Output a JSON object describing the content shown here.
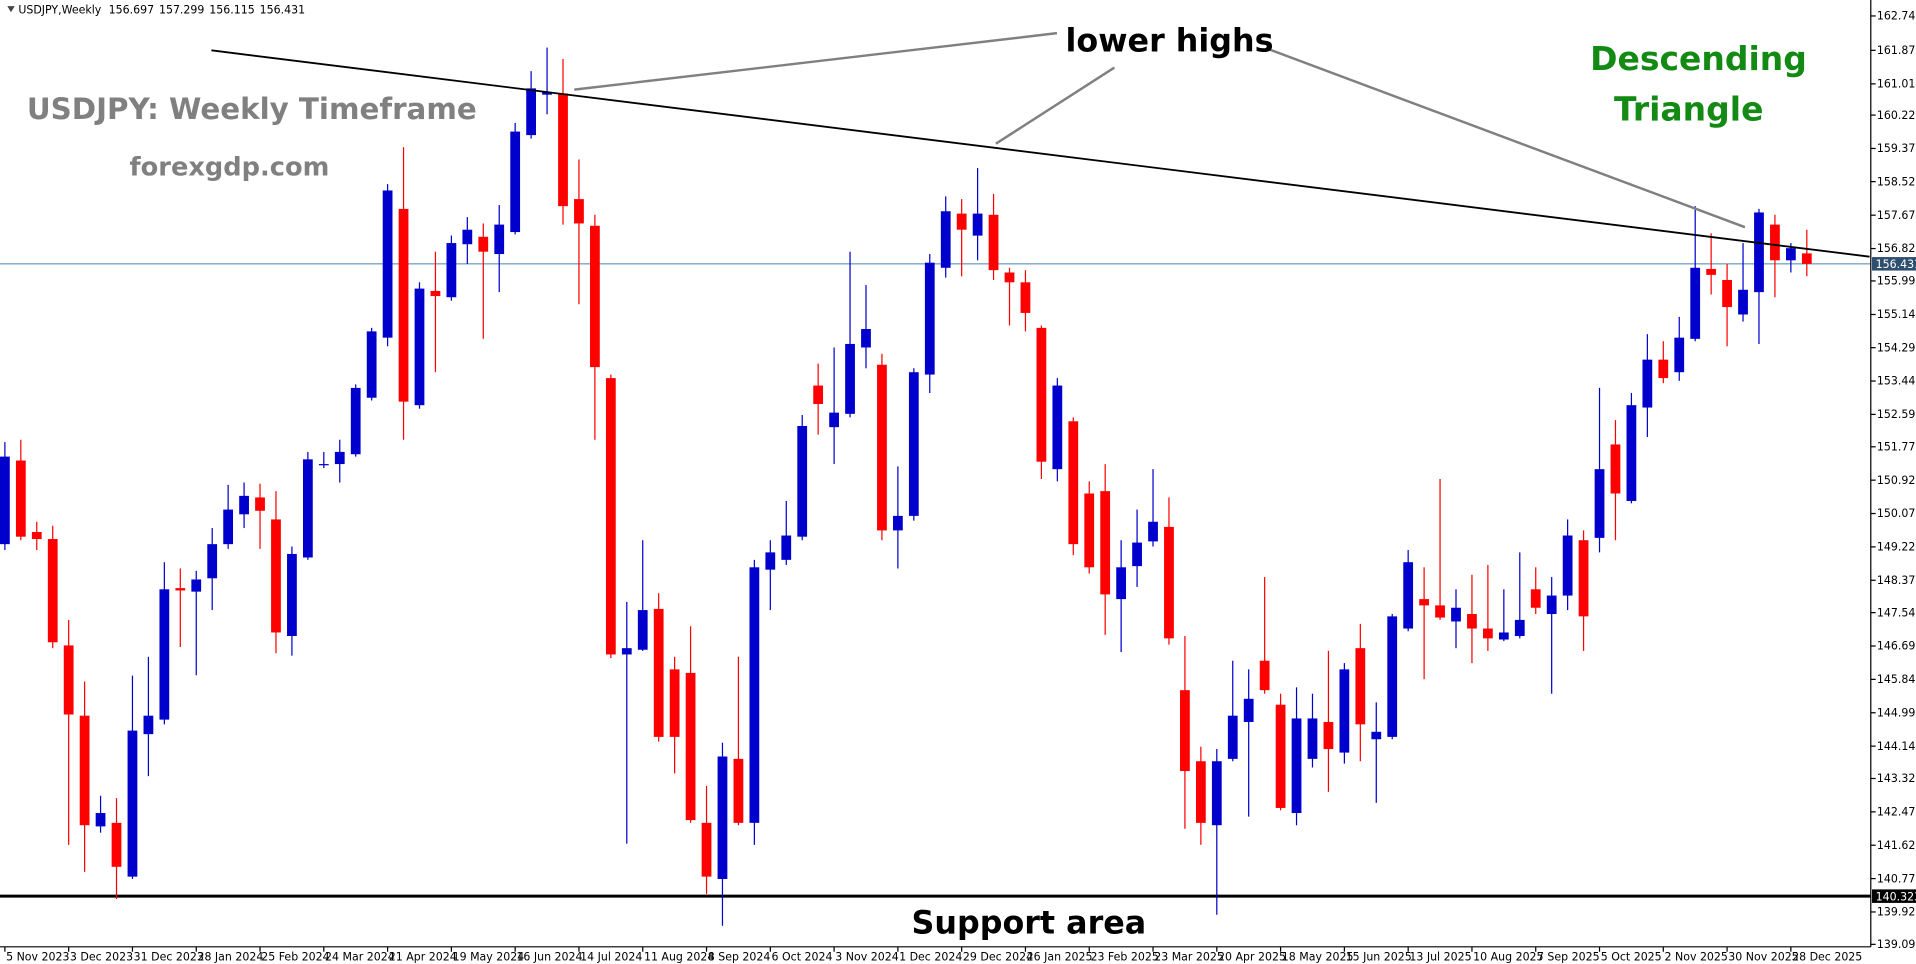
{
  "chart_data": {
    "type": "candlestick",
    "symbol": "USDJPY,Weekly",
    "title": "USDJPY: Weekly Timeframe",
    "source": "forexgdp.com",
    "annotation": "lower highs",
    "pattern_label": [
      "Descending",
      "Triangle"
    ],
    "support_label": "Support area",
    "up_color": "#0000cd",
    "down_color": "#ff0000",
    "current_price": 156.431,
    "current_price_color": "#4682b4",
    "support_level": 140.323,
    "ylim": [
      139.095,
      162.745
    ],
    "yticks": [
      162.745,
      {
        "value": 161.87,
        "label": "161.870"
      },
      161.015,
      {
        "value": 160.22,
        "label": "160.220"
      },
      {
        "value": 159.37,
        "label": "159.370"
      },
      158.525,
      {
        "value": 157.67,
        "label": "157.670"
      },
      {
        "value": 156.82,
        "label": "156.820"
      },
      155.995,
      {
        "value": 155.14,
        "label": "155.140"
      },
      154.295,
      153.445,
      152.595,
      {
        "value": 151.77,
        "label": "151.770"
      },
      {
        "value": 150.92,
        "label": "150.920"
      },
      {
        "value": 150.07,
        "label": "150.070"
      },
      {
        "value": 149.22,
        "label": "149.220"
      },
      {
        "value": 148.37,
        "label": "148.370"
      },
      147.545,
      146.695,
      145.845,
      144.995,
      144.145,
      {
        "value": 143.32,
        "label": "143.320"
      },
      {
        "value": 142.47,
        "label": "142.470"
      },
      {
        "value": 141.62,
        "label": "141.620"
      },
      {
        "value": 140.77,
        "label": "140.770"
      },
      {
        "value": 139.92,
        "label": "139.920"
      },
      139.095
    ],
    "categories": [
      "5 Nov 2023",
      null,
      null,
      null,
      "3 Dec 2023",
      null,
      null,
      null,
      "31 Dec 2023",
      null,
      null,
      null,
      "28 Jan 2024",
      null,
      null,
      null,
      "25 Feb 2024",
      null,
      null,
      null,
      "24 Mar 2024",
      null,
      null,
      null,
      "21 Apr 2024",
      null,
      null,
      null,
      "19 May 2024",
      null,
      null,
      null,
      "16 Jun 2024",
      null,
      null,
      null,
      "14 Jul 2024",
      null,
      null,
      null,
      "11 Aug 2024",
      null,
      null,
      null,
      "8 Sep 2024",
      null,
      null,
      null,
      "6 Oct 2024",
      null,
      null,
      null,
      "3 Nov 2024",
      null,
      null,
      null,
      "1 Dec 2024",
      null,
      null,
      null,
      "29 Dec 2024",
      null,
      null,
      null,
      "26 Jan 2025",
      null,
      null,
      null,
      "23 Feb 2025",
      null,
      null,
      null,
      "23 Mar 2025",
      null,
      null,
      null,
      "20 Apr 2025",
      null,
      null,
      null,
      "18 May 2025",
      null,
      null,
      null,
      "15 Jun 2025",
      null,
      null,
      null,
      "13 Jul 2025",
      null,
      null,
      null,
      "10 Aug 2025",
      null,
      null,
      null,
      "7 Sep 2025",
      null,
      null,
      null,
      "5 Oct 2025",
      null,
      null,
      null,
      "2 Nov 2025",
      null,
      null,
      null,
      "30 Nov 2025",
      null,
      null,
      null,
      "28 Dec 2025",
      null
    ],
    "open": [
      149.29,
      151.42,
      149.6,
      149.42,
      146.71,
      144.92,
      142.1,
      142.19,
      140.82,
      144.45,
      144.82,
      148.17,
      148.08,
      148.42,
      149.29,
      150.05,
      150.48,
      149.92,
      146.95,
      148.95,
      151.3,
      151.33,
      151.58,
      153.02,
      154.55,
      157.83,
      152.83,
      155.74,
      155.58,
      156.93,
      157.12,
      156.68,
      157.24,
      159.71,
      160.74,
      160.77,
      158.08,
      157.4,
      153.52,
      146.48,
      146.6,
      147.64,
      146.1,
      146.01,
      142.19,
      140.76,
      143.82,
      142.19,
      148.64,
      148.89,
      149.48,
      153.33,
      152.27,
      152.61,
      154.3,
      153.86,
      149.64,
      150.01,
      153.61,
      156.33,
      157.71,
      157.15,
      157.68,
      156.21,
      155.96,
      154.8,
      151.2,
      152.42,
      150.58,
      150.64,
      147.89,
      148.73,
      149.36,
      149.73,
      145.57,
      143.76,
      142.13,
      143.82,
      144.76,
      146.32,
      145.2,
      142.44,
      143.82,
      144.76,
      143.98,
      146.64,
      144.32,
      144.38,
      147.14,
      147.89,
      147.73,
      147.32,
      147.51,
      147.14,
      146.86,
      146.95,
      148.14,
      147.51,
      147.98,
      149.39,
      149.45,
      151.83,
      150.39,
      152.77,
      153.99,
      153.67,
      154.52,
      156.3,
      156.02,
      155.14,
      155.71,
      157.43,
      156.52,
      156.697
    ],
    "high": [
      151.89,
      151.95,
      149.86,
      149.76,
      147.36,
      145.79,
      142.88,
      142.82,
      145.94,
      146.42,
      148.83,
      148.67,
      148.61,
      149.7,
      150.8,
      150.86,
      150.83,
      150.64,
      149.23,
      151.64,
      151.64,
      151.95,
      153.36,
      154.8,
      158.46,
      159.4,
      155.96,
      156.74,
      157.15,
      157.62,
      157.46,
      157.93,
      160.02,
      161.34,
      161.94,
      161.65,
      159.09,
      157.68,
      153.61,
      147.82,
      149.39,
      148.04,
      146.42,
      147.2,
      143.13,
      144.23,
      146.42,
      148.89,
      149.39,
      150.39,
      152.58,
      153.89,
      154.3,
      156.74,
      155.89,
      154.14,
      151.27,
      153.77,
      156.68,
      158.15,
      158.08,
      158.87,
      158.21,
      156.33,
      156.27,
      154.86,
      153.52,
      152.52,
      150.89,
      151.33,
      149.39,
      150.17,
      151.2,
      150.48,
      146.95,
      144.13,
      144.07,
      146.32,
      146.1,
      148.45,
      145.48,
      145.64,
      145.48,
      146.57,
      146.26,
      147.26,
      145.26,
      147.51,
      149.14,
      148.7,
      150.95,
      148.14,
      148.51,
      148.76,
      148.14,
      149.08,
      148.7,
      148.45,
      149.92,
      149.64,
      153.27,
      152.45,
      153.14,
      154.64,
      154.46,
      155.08,
      157.9,
      157.21,
      156.43,
      156.96,
      157.83,
      157.68,
      156.96,
      157.299
    ],
    "low": [
      149.14,
      149.39,
      149.14,
      146.64,
      141.63,
      140.94,
      141.94,
      140.25,
      140.76,
      143.38,
      144.7,
      146.67,
      145.95,
      147.61,
      149.17,
      149.7,
      149.17,
      146.51,
      146.45,
      148.89,
      151.23,
      150.86,
      151.52,
      152.95,
      154.33,
      151.95,
      152.74,
      153.67,
      155.49,
      156.43,
      154.52,
      155.71,
      157.18,
      159.62,
      160.24,
      157.43,
      155.4,
      151.95,
      146.39,
      141.66,
      146.57,
      144.26,
      143.45,
      142.19,
      140.38,
      139.57,
      142.13,
      141.63,
      147.61,
      148.76,
      149.39,
      152.08,
      151.33,
      152.52,
      153.77,
      149.39,
      148.67,
      149.89,
      153.14,
      156.08,
      156.11,
      156.52,
      156.02,
      154.86,
      154.71,
      150.95,
      150.89,
      149.01,
      148.54,
      146.98,
      146.54,
      148.2,
      149.23,
      146.73,
      142.04,
      141.63,
      139.85,
      143.76,
      142.35,
      145.48,
      142.51,
      142.13,
      143.6,
      142.98,
      143.7,
      143.76,
      142.7,
      144.32,
      147.07,
      145.85,
      147.36,
      146.64,
      146.26,
      146.57,
      146.82,
      146.89,
      147.51,
      145.48,
      147.61,
      146.57,
      149.08,
      149.39,
      150.33,
      152.02,
      153.39,
      153.45,
      154.46,
      155.65,
      154.33,
      154.96,
      154.39,
      155.58,
      156.21,
      156.115
    ],
    "close": [
      151.52,
      149.48,
      149.42,
      146.79,
      144.95,
      142.13,
      142.44,
      141.07,
      144.54,
      144.92,
      148.14,
      148.11,
      148.39,
      149.29,
      150.17,
      150.52,
      150.14,
      147.04,
      149.04,
      151.45,
      151.33,
      151.64,
      153.27,
      154.71,
      158.3,
      152.92,
      155.8,
      155.61,
      156.96,
      157.3,
      156.74,
      157.43,
      159.8,
      160.9,
      160.81,
      157.9,
      157.46,
      153.8,
      146.48,
      146.64,
      147.61,
      144.38,
      144.38,
      142.26,
      140.82,
      143.88,
      142.19,
      148.7,
      149.08,
      149.51,
      152.3,
      152.86,
      152.64,
      154.39,
      154.77,
      149.64,
      150.01,
      153.67,
      156.46,
      157.77,
      157.3,
      157.71,
      156.27,
      155.96,
      155.18,
      151.39,
      153.33,
      149.29,
      148.7,
      148.01,
      148.7,
      149.33,
      149.86,
      146.89,
      143.51,
      142.19,
      143.76,
      144.92,
      145.35,
      145.57,
      142.57,
      144.85,
      144.85,
      144.07,
      146.1,
      144.7,
      144.51,
      147.45,
      148.83,
      147.73,
      147.42,
      147.67,
      147.14,
      146.89,
      147.04,
      147.36,
      147.67,
      147.98,
      149.51,
      147.45,
      151.2,
      150.58,
      152.83,
      153.99,
      153.52,
      154.55,
      156.33,
      156.15,
      155.33,
      155.77,
      157.74,
      156.52,
      156.83,
      156.431
    ]
  }
}
